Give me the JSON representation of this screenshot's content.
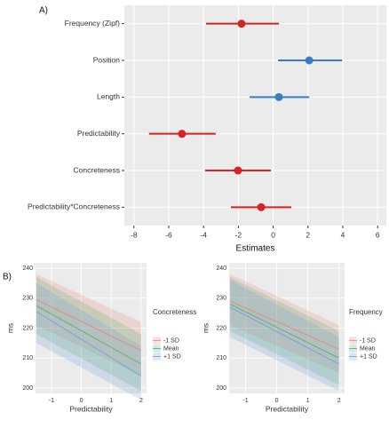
{
  "panel_labels": [
    "A)",
    "B)"
  ],
  "chart_data": [
    {
      "type": "forest",
      "xlabel": "Estimates",
      "categories": [
        "Frequency (Zipf)",
        "Position",
        "Length",
        "Predictability",
        "Concreteness",
        "Predictability*Concreteness"
      ],
      "values": [
        -1.82,
        2.07,
        0.33,
        -5.24,
        -2.02,
        -0.69
      ],
      "lower": [
        -3.86,
        0.28,
        -1.36,
        -7.13,
        -3.91,
        -2.43
      ],
      "upper": [
        0.33,
        3.96,
        2.07,
        -3.3,
        -0.13,
        1.04
      ],
      "colors": [
        "#d42424",
        "#3a7dc0",
        "#3a7dc0",
        "#d42424",
        "#d42424",
        "#d42424"
      ],
      "xlim": [
        -8.55,
        6.5
      ],
      "xticks": [
        -8,
        -6,
        -4,
        -2,
        0,
        2,
        4,
        6
      ],
      "grid": true
    },
    {
      "type": "ribbon",
      "xlabel": "Predictability",
      "ylabel": "ms",
      "legend_title": "Concreteness",
      "x": [
        -1.5,
        2
      ],
      "series": [
        {
          "name": "-1 SD",
          "color": "#e8837c",
          "values": [
            229.5,
            212.5
          ],
          "lower": [
            221,
            204
          ],
          "upper": [
            238,
            222
          ]
        },
        {
          "name": "Mean",
          "color": "#4fae62",
          "values": [
            227.5,
            208
          ],
          "lower": [
            218,
            199
          ],
          "upper": [
            237,
            218
          ]
        },
        {
          "name": "+1 SD",
          "color": "#6a9bd8",
          "values": [
            225.5,
            204
          ],
          "lower": [
            215,
            196
          ],
          "upper": [
            235,
            214
          ]
        }
      ],
      "xlim": [
        -1.53,
        2.18
      ],
      "xticks": [
        -1,
        0,
        1,
        2
      ],
      "ylim": [
        198.2,
        241.8
      ],
      "yticks": [
        200,
        210,
        220,
        230,
        240
      ],
      "grid": true
    },
    {
      "type": "ribbon",
      "xlabel": "Predictability",
      "ylabel": "ms",
      "legend_title": "Frequency",
      "x": [
        -1.5,
        2
      ],
      "series": [
        {
          "name": "-1 SD",
          "color": "#e8837c",
          "values": [
            229,
            213
          ],
          "lower": [
            221,
            205
          ],
          "upper": [
            238,
            221
          ]
        },
        {
          "name": "Mean",
          "color": "#4fae62",
          "values": [
            228,
            210
          ],
          "lower": [
            219,
            201
          ],
          "upper": [
            237,
            219
          ]
        },
        {
          "name": "+1 SD",
          "color": "#6a9bd8",
          "values": [
            227,
            208
          ],
          "lower": [
            217,
            199
          ],
          "upper": [
            236,
            217
          ]
        }
      ],
      "xlim": [
        -1.53,
        2.18
      ],
      "xticks": [
        -1,
        0,
        1,
        2
      ],
      "ylim": [
        198.2,
        241.8
      ],
      "yticks": [
        200,
        210,
        220,
        230,
        240
      ],
      "grid": true
    }
  ]
}
